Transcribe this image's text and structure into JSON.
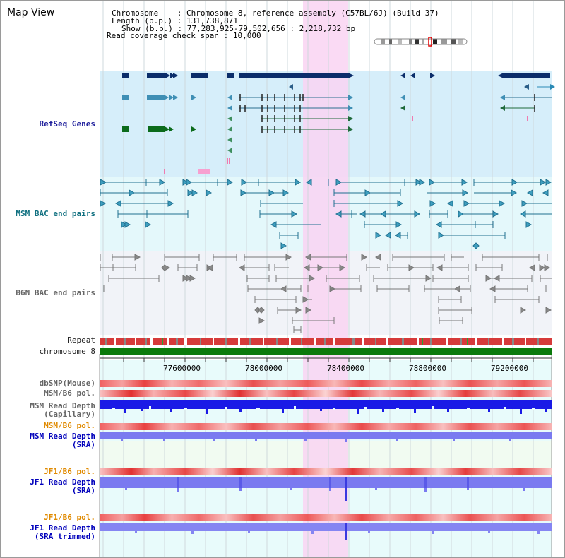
{
  "title": "Map View",
  "info": {
    "chromosome_key": "Chromosome",
    "chromosome_value": "Chromosome 8, reference assembly (C57BL/6J) (Build 37)",
    "length_key": "Length (b.p.)",
    "length_value": "131,738,871",
    "show_key": "Show (b.p.)",
    "show_value": "77,283,925-79,502,656 : 2,218,732 bp",
    "coverage_key": "Read coverage check span",
    "coverage_value": "10,000"
  },
  "tracks": {
    "refseq": "RefSeq Genes",
    "msm_bac": "MSM BAC end pairs",
    "b6n_bac": "B6N BAC end pairs",
    "repeat": "Repeat",
    "chromosome": "chromosome 8",
    "dbsnp": "dbSNP(Mouse)",
    "msm_b6_pol": "MSM/B6 pol.",
    "msm_read_depth_cap_1": "MSM Read Depth",
    "msm_read_depth_cap_2": "(Capillary)",
    "msm_b6_pol_sra": "MSM/B6 pol.",
    "msm_read_depth_sra_1": "MSM Read Depth",
    "msm_read_depth_sra_2": "(SRA)",
    "jf1_b6_pol": "JF1/B6 pol.",
    "jf1_read_depth_1": "JF1 Read Depth",
    "jf1_read_depth_2": "(SRA)",
    "jf1_b6_pol_trim": "JF1/B6 pol.",
    "jf1_read_depth_trim_1": "JF1 Read Depth",
    "jf1_read_depth_trim_2": "(SRA trimmed)"
  },
  "axis": {
    "ticks": [
      "77600000",
      "78000000",
      "78400000",
      "78800000",
      "79200000"
    ]
  },
  "colors": {
    "highlight": "#f9d4f2",
    "refseq_bg": "#d6eefa",
    "msm_bg": "#e4f8fb",
    "b6n_bg": "#f1f3f8",
    "gene_navy": "#0b2d6a",
    "gene_teal": "#3f8fb5",
    "gene_green": "#0b6b1b",
    "chromosome_green": "#0b7a0b",
    "snp_red": "#e63b3b",
    "depth_blue": "#1a1ae6",
    "depth_light_blue": "#7a7af0"
  }
}
